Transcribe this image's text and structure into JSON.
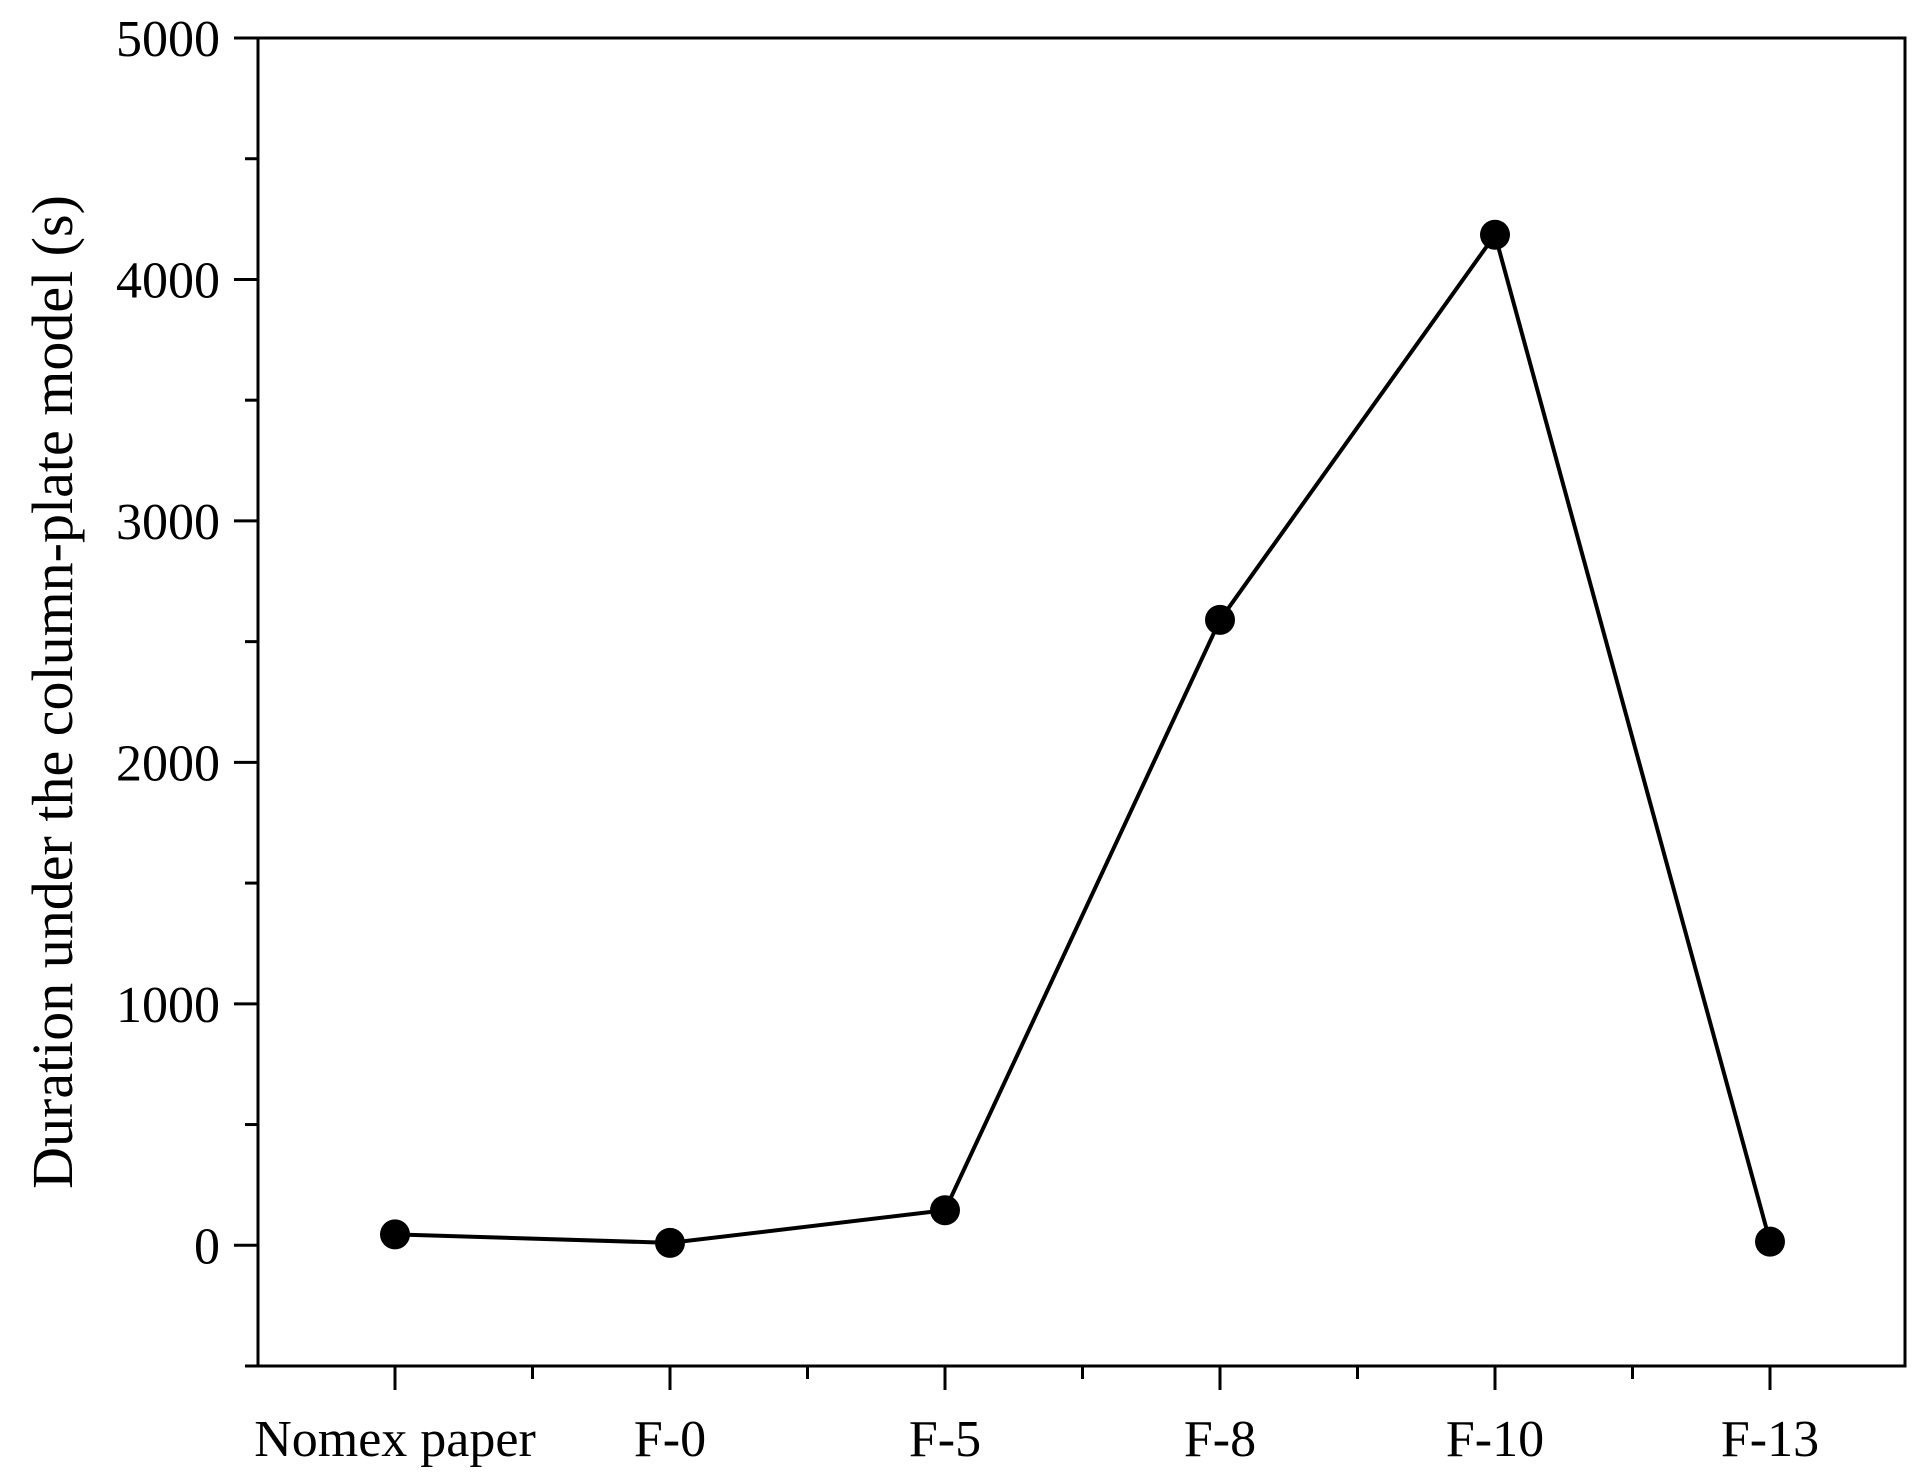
{
  "chart_data": {
    "type": "line",
    "title": "",
    "xlabel": "",
    "ylabel": "Duration under the column-plate model (s)",
    "categories": [
      "Nomex paper",
      "F-0",
      "F-5",
      "F-8",
      "F-10",
      "F-13"
    ],
    "series": [
      {
        "values": [
          45,
          10,
          145,
          2590,
          4185,
          15
        ]
      }
    ],
    "ylim": [
      -500,
      5000
    ],
    "yticks": [
      0,
      1000,
      2000,
      3000,
      4000,
      5000
    ],
    "grid": false,
    "marker": "filled-circle",
    "line_color": "#000000"
  }
}
